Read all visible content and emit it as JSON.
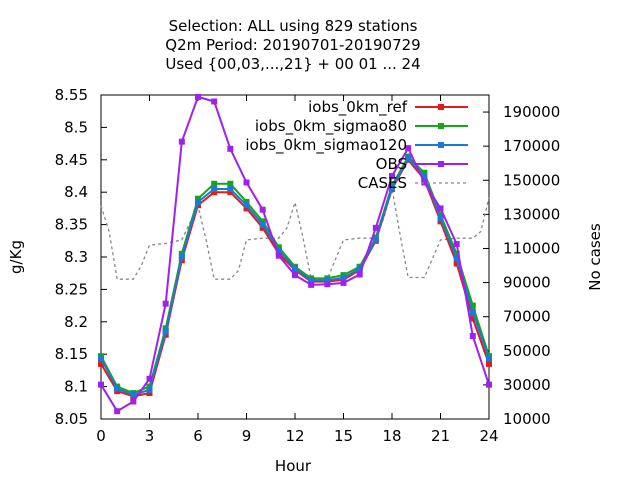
{
  "chart_data": {
    "type": "line",
    "title_lines": [
      "Selection: ALL using   829 stations",
      "Q2m   Period: 20190701-20190729",
      "Used {00,03,...,21} + 00 01 ... 24"
    ],
    "xlabel": "Hour",
    "ylabel": "g/Kg",
    "y2label": "No cases",
    "xlim": [
      0,
      24
    ],
    "ylim": [
      8.05,
      8.55
    ],
    "y2lim": [
      10000,
      200000
    ],
    "xticks": [
      0,
      3,
      6,
      9,
      12,
      15,
      18,
      21,
      24
    ],
    "yticks": [
      8.05,
      8.1,
      8.15,
      8.2,
      8.25,
      8.3,
      8.35,
      8.4,
      8.45,
      8.5,
      8.55
    ],
    "ytick_labels": [
      "8.05",
      "8.1",
      "8.15",
      "8.2",
      "8.25",
      "8.3",
      "8.35",
      "8.4",
      "8.45",
      "8.5",
      "8.55"
    ],
    "y2ticks": [
      10000,
      30000,
      50000,
      70000,
      90000,
      110000,
      130000,
      150000,
      170000,
      190000
    ],
    "legend_position": "top-right",
    "grid": false,
    "x": [
      0,
      1,
      2,
      3,
      4,
      5,
      6,
      7,
      8,
      9,
      10,
      11,
      12,
      13,
      14,
      15,
      16,
      17,
      18,
      19,
      20,
      21,
      22,
      23,
      24
    ],
    "series": [
      {
        "name": "iobs_0km_ref",
        "color": "#e41a1c",
        "marker": "square",
        "values": [
          8.135,
          8.093,
          8.085,
          8.09,
          8.18,
          8.295,
          8.38,
          8.4,
          8.4,
          8.375,
          8.345,
          8.305,
          8.28,
          8.262,
          8.262,
          8.265,
          8.28,
          8.325,
          8.405,
          8.45,
          8.42,
          8.355,
          8.29,
          8.205,
          8.135
        ]
      },
      {
        "name": "iobs_0km_sigmao80",
        "color": "#16a616",
        "marker": "square",
        "values": [
          8.147,
          8.1,
          8.09,
          8.1,
          8.19,
          8.305,
          8.39,
          8.413,
          8.413,
          8.385,
          8.355,
          8.315,
          8.285,
          8.267,
          8.267,
          8.272,
          8.285,
          8.33,
          8.41,
          8.455,
          8.43,
          8.365,
          8.305,
          8.225,
          8.147
        ]
      },
      {
        "name": "iobs_0km_sigmao120",
        "color": "#1a7ad6",
        "marker": "square",
        "values": [
          8.143,
          8.097,
          8.087,
          8.095,
          8.185,
          8.3,
          8.385,
          8.405,
          8.405,
          8.38,
          8.35,
          8.31,
          8.282,
          8.264,
          8.264,
          8.268,
          8.282,
          8.327,
          8.407,
          8.452,
          8.425,
          8.36,
          8.298,
          8.215,
          8.143
        ]
      },
      {
        "name": "OBS",
        "color": "#a020f0",
        "marker": "square",
        "values": [
          8.103,
          8.062,
          8.077,
          8.112,
          8.228,
          8.478,
          8.547,
          8.54,
          8.467,
          8.415,
          8.373,
          8.302,
          8.272,
          8.257,
          8.258,
          8.26,
          8.273,
          8.345,
          8.425,
          8.468,
          8.415,
          8.375,
          8.32,
          8.178,
          8.103
        ]
      },
      {
        "name": "CASES",
        "color": "#888888",
        "marker": "none",
        "dashed": true,
        "axis": "y2",
        "x": [
          0,
          0.5,
          1,
          2,
          2.5,
          3,
          4,
          5,
          6,
          6.5,
          7,
          8,
          8.5,
          9,
          10,
          11,
          11.5,
          12,
          12.5,
          13,
          14,
          15,
          16,
          17,
          17.5,
          18,
          18.5,
          19,
          20,
          21,
          22,
          23,
          23.5,
          24
        ],
        "values": [
          135000,
          120000,
          92000,
          92000,
          100000,
          112000,
          113000,
          115000,
          135000,
          115000,
          92000,
          92000,
          97000,
          115000,
          116000,
          116000,
          122000,
          137000,
          116000,
          92000,
          92000,
          115000,
          116000,
          116000,
          128000,
          145000,
          118000,
          93000,
          93000,
          115000,
          116000,
          116000,
          120000,
          140000
        ]
      }
    ]
  }
}
